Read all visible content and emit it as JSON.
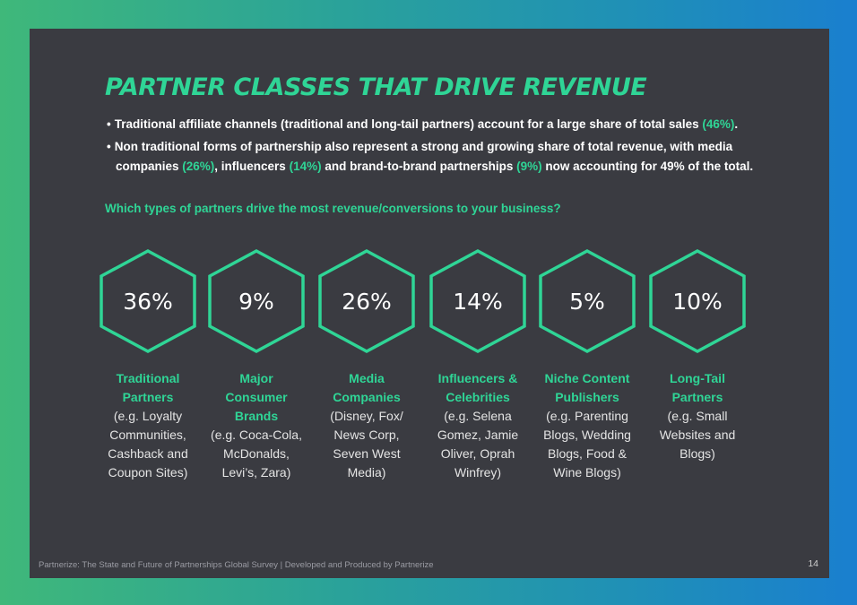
{
  "title": "PARTNER CLASSES THAT DRIVE REVENUE",
  "bullets": [
    {
      "pre": "Traditional affiliate channels (traditional and long-tail partners) account for a large share of total sales ",
      "hl": "(46%)",
      "post": "."
    },
    {
      "p1": "Non traditional forms of partnership also represent a strong and growing share of total revenue, with media companies ",
      "h1": "(26%)",
      "p2": ", influencers ",
      "h2": "(14%)",
      "p3": " and brand-to-brand partnerships ",
      "h3": "(9%)",
      "p4": " now accounting for 49% of the total."
    }
  ],
  "question": "Which types of partners drive the most revenue/conversions to your business?",
  "stats": [
    {
      "pct": "36%",
      "label_lines": [
        "Traditional",
        "Partners"
      ],
      "desc_lines": [
        "(e.g. Loyalty",
        "Communities,",
        "Cashback and",
        "Coupon Sites)"
      ]
    },
    {
      "pct": "9%",
      "label_lines": [
        "Major",
        "Consumer",
        "Brands"
      ],
      "desc_lines": [
        "(e.g. Coca-Cola,",
        "McDonalds,",
        "Levi’s, Zara)"
      ]
    },
    {
      "pct": "26%",
      "label_lines": [
        "Media",
        "Companies"
      ],
      "desc_lines": [
        "(Disney, Fox/",
        "News Corp,",
        "Seven West",
        "Media)"
      ]
    },
    {
      "pct": "14%",
      "label_lines": [
        "Influencers &",
        "Celebrities"
      ],
      "desc_lines": [
        "(e.g. Selena",
        "Gomez, Jamie",
        "Oliver, Oprah",
        "Winfrey)"
      ]
    },
    {
      "pct": "5%",
      "label_lines": [
        "Niche Content",
        "Publishers"
      ],
      "desc_lines": [
        "(e.g. Parenting",
        "Blogs, Wedding",
        "Blogs, Food &",
        "Wine Blogs)"
      ]
    },
    {
      "pct": "10%",
      "label_lines": [
        "Long-Tail",
        "Partners"
      ],
      "desc_lines": [
        "(e.g. Small",
        "Websites and",
        "Blogs)"
      ]
    }
  ],
  "footer": "Partnerize: The State and Future of Partnerships Global Survey | Developed and Produced by Partnerize",
  "page_number": "14",
  "colors": {
    "accent": "#2fd596",
    "card_bg": "#3a3b41"
  }
}
